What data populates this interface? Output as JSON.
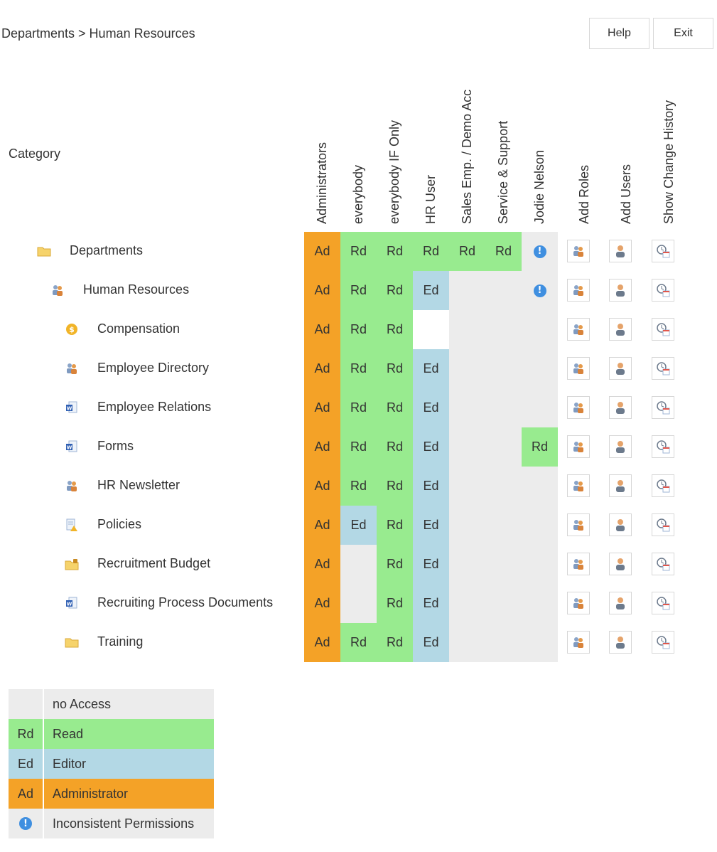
{
  "breadcrumb": "Departments > Human Resources",
  "buttons": {
    "help": "Help",
    "exit": "Exit"
  },
  "category_header": "Category",
  "columns": [
    "Administrators",
    "everybody",
    "everybody IF Only",
    "HR User",
    "Sales Emp. / Demo Acc",
    "Service & Support",
    "Jodie Nelson",
    "Add Roles",
    "Add Users",
    "Show Change History"
  ],
  "rows": [
    {
      "label": "Departments",
      "icon": "folder-icon",
      "cells": [
        "Ad",
        "Rd",
        "Rd",
        "Rd",
        "Rd",
        "Rd",
        "!"
      ]
    },
    {
      "label": "Human Resources",
      "icon": "group-icon",
      "cells": [
        "Ad",
        "Rd",
        "Rd",
        "Ed",
        "",
        "",
        "!"
      ]
    },
    {
      "label": "Compensation",
      "icon": "coin-icon",
      "cells": [
        "Ad",
        "Rd",
        "Rd",
        "",
        "",
        "",
        ""
      ]
    },
    {
      "label": "Employee Directory",
      "icon": "group-icon",
      "cells": [
        "Ad",
        "Rd",
        "Rd",
        "Ed",
        "",
        "",
        ""
      ]
    },
    {
      "label": "Employee Relations",
      "icon": "word-document-icon",
      "cells": [
        "Ad",
        "Rd",
        "Rd",
        "Ed",
        "",
        "",
        ""
      ]
    },
    {
      "label": "Forms",
      "icon": "word-document-icon",
      "cells": [
        "Ad",
        "Rd",
        "Rd",
        "Ed",
        "",
        "",
        "Rd"
      ]
    },
    {
      "label": "HR Newsletter",
      "icon": "group-icon",
      "cells": [
        "Ad",
        "Rd",
        "Rd",
        "Ed",
        "",
        "",
        ""
      ]
    },
    {
      "label": "Policies",
      "icon": "document-warning-icon",
      "cells": [
        "Ad",
        "Ed",
        "Rd",
        "Ed",
        "",
        "",
        ""
      ]
    },
    {
      "label": "Recruitment Budget",
      "icon": "locked-folder-icon",
      "cells": [
        "Ad",
        "",
        "Rd",
        "Ed",
        "",
        "",
        ""
      ]
    },
    {
      "label": "Recruiting Process Documents",
      "icon": "word-document-icon",
      "cells": [
        "Ad",
        "",
        "Rd",
        "Ed",
        "",
        "",
        ""
      ]
    },
    {
      "label": "Training",
      "icon": "folder-icon",
      "cells": [
        "Ad",
        "Rd",
        "Rd",
        "Ed",
        "",
        "",
        ""
      ]
    }
  ],
  "legend": [
    {
      "key": "",
      "text": "no Access",
      "color": "#ececec"
    },
    {
      "key": "Rd",
      "text": "Read",
      "color": "#98eb8f"
    },
    {
      "key": "Ed",
      "text": "Editor",
      "color": "#b3d8e5"
    },
    {
      "key": "Ad",
      "text": "Administrator",
      "color": "#f4a227"
    },
    {
      "key": "!",
      "text": "Inconsistent Permissions",
      "color": "#ececec"
    }
  ],
  "colors": {
    "admin": "#f4a227",
    "read": "#98eb8f",
    "editor": "#b3d8e5",
    "no_access": "#ececec",
    "warning": "#3f8fe0"
  }
}
